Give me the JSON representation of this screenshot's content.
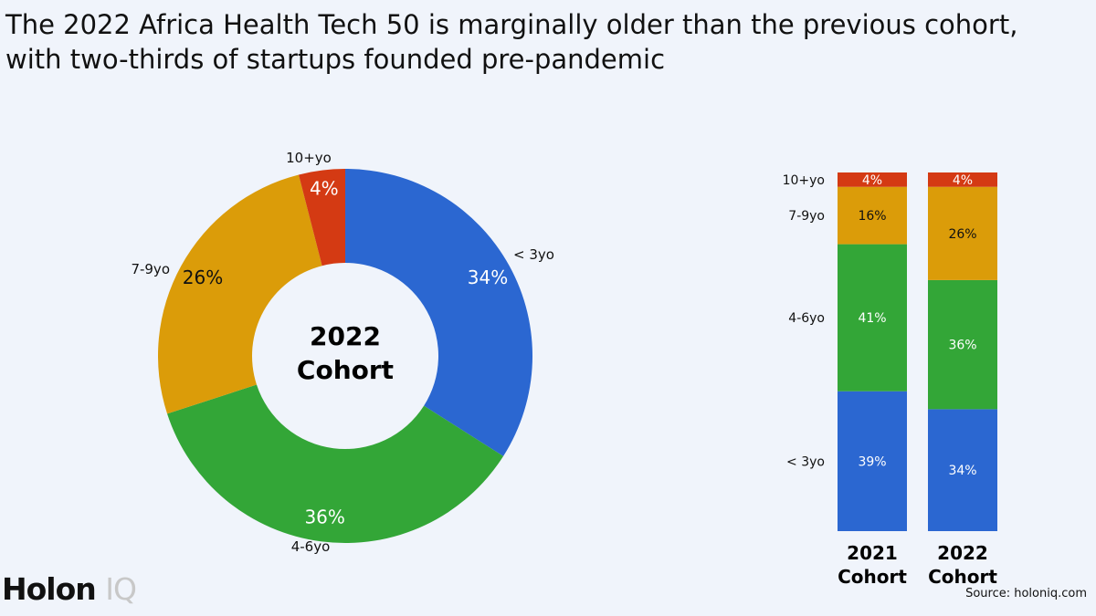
{
  "title": "The 2022 Africa Health Tech 50 is marginally older than the previous cohort, with two-thirds of startups founded pre-pandemic",
  "logo": {
    "part1": "Holon",
    "part2": "IQ"
  },
  "source": "Source: holoniq.com",
  "colors": {
    "<3yo": "#2b67d1",
    "4-6yo": "#33a637",
    "7-9yo": "#db9c09",
    "10+yo": "#d43a13",
    "background": "#f0f4fb"
  },
  "chart_data": [
    {
      "type": "pie",
      "variant": "donut",
      "center_label": [
        "2022",
        "Cohort"
      ],
      "categories": [
        "< 3yo",
        "4-6yo",
        "7-9yo",
        "10+yo"
      ],
      "values": [
        34,
        36,
        26,
        4
      ],
      "data_labels": [
        "34%",
        "36%",
        "26%",
        "4%"
      ]
    },
    {
      "type": "bar",
      "variant": "stacked-100",
      "categories": [
        "2021 Cohort",
        "2022 Cohort"
      ],
      "series": [
        {
          "name": "< 3yo",
          "values": [
            39,
            34
          ]
        },
        {
          "name": "4-6yo",
          "values": [
            41,
            36
          ]
        },
        {
          "name": "7-9yo",
          "values": [
            16,
            26
          ]
        },
        {
          "name": "10+yo",
          "values": [
            4,
            4
          ]
        }
      ]
    }
  ]
}
